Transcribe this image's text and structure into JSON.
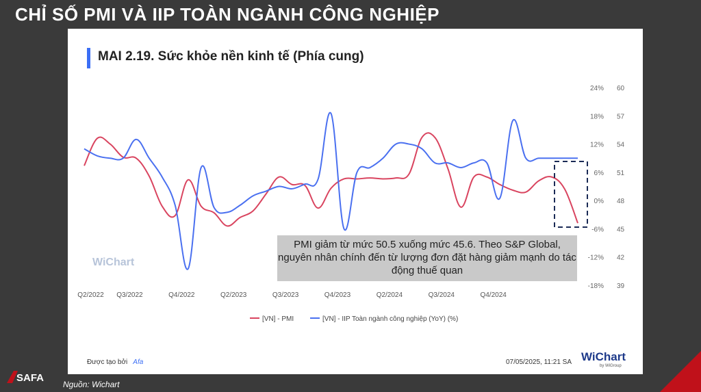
{
  "slide": {
    "title": "CHỈ SỐ PMI VÀ IIP TOÀN NGÀNH CÔNG NGHIỆP",
    "source": "Nguồn: Wichart",
    "logo_text": "SAFA"
  },
  "card": {
    "title": "MAI 2.19. Sức khỏe nền kinh tế (Phía cung)",
    "annotation": "PMI giảm từ mức 50.5 xuống mức 45.6. Theo S&P Global, nguyên nhân chính đến từ lượng đơn đặt hàng giảm mạnh do tác động thuế quan",
    "footer_created": "Được tạo bởi",
    "footer_brand": "Afa",
    "footer_timestamp": "07/05/2025, 11:21 SA",
    "watermark": "WiChart",
    "logo": "WiChart",
    "logo_sub": "by WiGroup"
  },
  "chart_data": {
    "type": "line",
    "x": [
      0,
      1,
      2,
      3,
      4,
      5,
      6,
      7,
      8,
      9,
      10,
      11,
      12,
      13,
      14,
      15,
      16,
      17,
      18,
      19,
      20,
      21,
      22,
      23,
      24,
      25,
      26,
      27,
      28,
      29,
      30,
      31,
      32,
      33,
      34,
      35,
      36,
      37,
      38
    ],
    "x_tick_labels": [
      {
        "label": "Q2/2022",
        "x": 0.5
      },
      {
        "label": "Q3/2022",
        "x": 3.5
      },
      {
        "label": "Q4/2022",
        "x": 7.5
      },
      {
        "label": "Q2/2023",
        "x": 11.5
      },
      {
        "label": "Q3/2023",
        "x": 15.5
      },
      {
        "label": "Q4/2023",
        "x": 19.5
      },
      {
        "label": "Q2/2024",
        "x": 23.5
      },
      {
        "label": "Q3/2024",
        "x": 27.5
      },
      {
        "label": "Q4/2024",
        "x": 31.5
      }
    ],
    "y_left_ticks": [
      "24%",
      "18%",
      "12%",
      "6%",
      "0%",
      "-6%",
      "-12%",
      "-18%"
    ],
    "y_left_range": [
      -18,
      24
    ],
    "y_right_ticks": [
      "60",
      "57",
      "54",
      "51",
      "48",
      "45",
      "42",
      "39"
    ],
    "y_right_range": [
      39,
      60
    ],
    "series": [
      {
        "name": "[VN] - PMI",
        "axis": "right",
        "color": "#d9445f",
        "values": [
          51.7,
          54.6,
          54.0,
          52.6,
          52.5,
          50.6,
          47.4,
          46.4,
          50.2,
          47.4,
          46.7,
          45.3,
          46.2,
          46.9,
          48.7,
          50.5,
          49.7,
          49.6,
          47.2,
          49.3,
          50.3,
          50.3,
          50.4,
          50.3,
          50.4,
          50.8,
          54.7,
          54.7,
          51.4,
          47.3,
          50.5,
          50.5,
          49.7,
          49.1,
          48.9,
          50.1,
          50.5,
          49.2,
          45.6
        ]
      },
      {
        "name": "[VN] - IIP Toàn ngành công nghiệp (YoY) (%)",
        "axis": "left",
        "color": "#4a70f0",
        "values": [
          11.0,
          9.5,
          9.0,
          9.0,
          13.0,
          9.0,
          5.0,
          -1.0,
          -14.5,
          7.0,
          -1.5,
          -2.5,
          -1.0,
          1.0,
          2.0,
          3.0,
          2.5,
          3.5,
          4.5,
          18.5,
          -6.0,
          6.0,
          7.0,
          9.0,
          12.0,
          12.0,
          11.0,
          8.0,
          8.0,
          7.0,
          8.0,
          8.0,
          0.5,
          17.0,
          9.0,
          9.0,
          9.0,
          9.0,
          9.0
        ]
      }
    ],
    "legend_position": "bottom",
    "grid": false
  }
}
